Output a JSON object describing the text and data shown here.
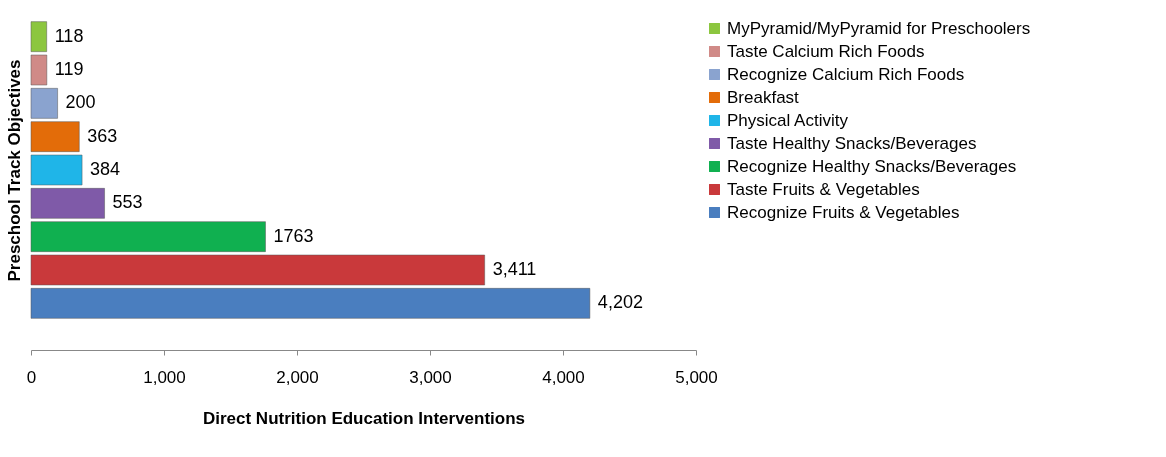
{
  "chart_data": {
    "type": "bar",
    "orientation": "horizontal",
    "xlabel": "Direct Nutrition Education Interventions",
    "ylabel": "Preschool Track Objectives",
    "categories": [
      null,
      null,
      null,
      null,
      null,
      null,
      null,
      null,
      null
    ],
    "series": [
      {
        "name": "MyPyramid/MyPyramid for Preschoolers",
        "color": "#8cc63f",
        "values": [
          118,
          null,
          null,
          null,
          null,
          null,
          null,
          null,
          null
        ]
      },
      {
        "name": "Taste Calcium Rich Foods",
        "color": "#d08a87",
        "values": [
          null,
          119,
          null,
          null,
          null,
          null,
          null,
          null,
          null
        ]
      },
      {
        "name": "Recognize Calcium Rich Foods",
        "color": "#8aa3cf",
        "values": [
          null,
          null,
          200,
          null,
          null,
          null,
          null,
          null,
          null
        ]
      },
      {
        "name": "Breakfast",
        "color": "#e36c09",
        "values": [
          null,
          null,
          null,
          363,
          null,
          null,
          null,
          null,
          null
        ]
      },
      {
        "name": "Physical Activity",
        "color": "#1fb5e8",
        "values": [
          null,
          null,
          null,
          null,
          384,
          null,
          null,
          null,
          null
        ]
      },
      {
        "name": "Taste Healthy Snacks/Beverages",
        "color": "#7f5aa8",
        "values": [
          null,
          null,
          null,
          null,
          null,
          553,
          null,
          null,
          null
        ]
      },
      {
        "name": "Recognize Healthy Snacks/Beverages",
        "color": "#10b050",
        "values": [
          null,
          null,
          null,
          null,
          null,
          null,
          1763,
          null,
          null
        ]
      },
      {
        "name": "Taste Fruits & Vegetables",
        "color": "#c9393b",
        "values": [
          null,
          null,
          null,
          null,
          null,
          null,
          null,
          3411,
          null
        ]
      },
      {
        "name": "Recognize Fruits & Vegetables",
        "color": "#4a7ebf",
        "values": [
          null,
          null,
          null,
          null,
          null,
          null,
          null,
          null,
          4202
        ]
      }
    ],
    "value_labels": [
      "118",
      "119",
      "200",
      "363",
      "384",
      "553",
      "1763",
      "3,411",
      "4,202"
    ],
    "xlim": [
      0,
      5000
    ],
    "xticks": [
      {
        "value": 0,
        "label": "0"
      },
      {
        "value": 1000,
        "label": "1,000"
      },
      {
        "value": 2000,
        "label": "2,000"
      },
      {
        "value": 3000,
        "label": "3,000"
      },
      {
        "value": 4000,
        "label": "4,000"
      },
      {
        "value": 5000,
        "label": "5,000"
      }
    ],
    "stacked": true,
    "grid": false,
    "legend": "right"
  }
}
